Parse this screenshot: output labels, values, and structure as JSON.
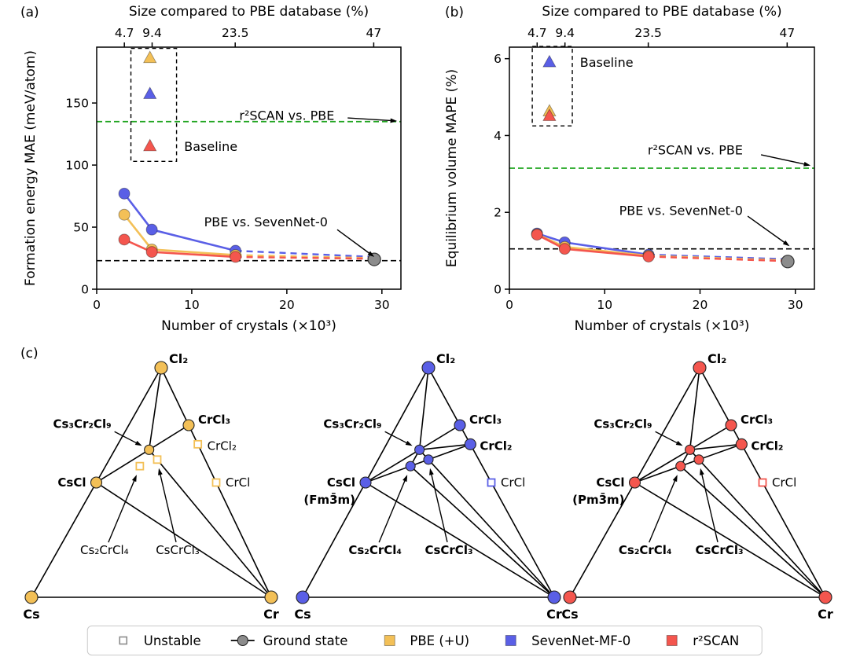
{
  "figure": {
    "panel_letters": {
      "a": "(a)",
      "b": "(b)",
      "c": "(c)"
    }
  },
  "colors": {
    "pbe_u": "#F3C057",
    "sevennet": "#5A5FE6",
    "r2scan": "#F4564E",
    "baseline_green": "#1FA51F",
    "ground_gray": "#8C8C8C",
    "unstable_gray": "#8C8C8C",
    "legend_border": "#C9C9C9"
  },
  "chart_data": [
    {
      "id": "a",
      "type": "line",
      "top_axis_title": "Size compared to PBE database (%)",
      "xlabel": "Number of crystals (×10³)",
      "ylabel": "Formation energy MAE (meV/atom)",
      "xlim": [
        0,
        32
      ],
      "ylim": [
        0,
        195
      ],
      "xticks": [
        0,
        10,
        20,
        30
      ],
      "yticks": [
        0,
        50,
        100,
        150
      ],
      "top_ticks": [
        {
          "x": 2.91,
          "label": "4.7"
        },
        {
          "x": 5.83,
          "label": "9.4"
        },
        {
          "x": 14.57,
          "label": "23.5"
        },
        {
          "x": 29.14,
          "label": "47"
        }
      ],
      "baselines": [
        {
          "y": 135,
          "color": "green"
        },
        {
          "y": 23,
          "color": "black"
        }
      ],
      "series": [
        {
          "name": "SevenNet-MF-0",
          "color_key": "sevennet",
          "solid": [
            [
              2.9,
              77
            ],
            [
              5.8,
              48
            ],
            [
              14.6,
              31
            ]
          ],
          "dashed_to": [
            29.2,
            26
          ]
        },
        {
          "name": "PBE (+U)",
          "color_key": "pbe_u",
          "solid": [
            [
              2.9,
              60
            ],
            [
              5.8,
              32
            ],
            [
              14.6,
              27.5
            ]
          ],
          "dashed_to": [
            29.2,
            25
          ]
        },
        {
          "name": "r²SCAN",
          "color_key": "r2scan",
          "solid": [
            [
              2.9,
              40
            ],
            [
              5.8,
              30
            ],
            [
              14.6,
              26
            ]
          ],
          "dashed_to": [
            29.2,
            24.5
          ]
        }
      ],
      "ground_state_point": [
        29.2,
        24
      ],
      "baseline_markers": [
        {
          "color_key": "pbe_u",
          "x": 5.6,
          "y": 186
        },
        {
          "color_key": "sevennet",
          "x": 5.6,
          "y": 157
        },
        {
          "color_key": "r2scan",
          "x": 5.6,
          "y": 115
        }
      ],
      "baseline_box": [
        3.6,
        103,
        8.4,
        194
      ],
      "baseline_label": {
        "text": "Baseline",
        "x": 9.2,
        "y": 115
      },
      "annotations": [
        {
          "text": "r²SCAN vs. PBE",
          "x": 20,
          "y": 140,
          "arrow": [
            [
              26.4,
              138
            ],
            [
              31.6,
              135.5
            ]
          ]
        },
        {
          "text": "PBE vs. SevenNet-0",
          "x": 17.8,
          "y": 54,
          "arrow": [
            [
              25.3,
              48
            ],
            [
              29.2,
              26
            ]
          ]
        }
      ]
    },
    {
      "id": "b",
      "type": "line",
      "top_axis_title": "Size compared to PBE database (%)",
      "xlabel": "Number of crystals (×10³)",
      "ylabel": "Equilibrium volume MAPE (%)",
      "xlim": [
        0,
        32
      ],
      "ylim": [
        0,
        6.3
      ],
      "xticks": [
        0,
        10,
        20,
        30
      ],
      "yticks": [
        0,
        2,
        4,
        6
      ],
      "top_ticks": [
        {
          "x": 2.91,
          "label": "4.7"
        },
        {
          "x": 5.83,
          "label": "9.4"
        },
        {
          "x": 14.57,
          "label": "23.5"
        },
        {
          "x": 29.14,
          "label": "47"
        }
      ],
      "baselines": [
        {
          "y": 3.15,
          "color": "green"
        },
        {
          "y": 1.05,
          "color": "black"
        }
      ],
      "series": [
        {
          "name": "SevenNet-MF-0",
          "color_key": "sevennet",
          "solid": [
            [
              2.9,
              1.45
            ],
            [
              5.8,
              1.22
            ],
            [
              14.6,
              0.9
            ]
          ],
          "dashed_to": [
            29.2,
            0.78
          ]
        },
        {
          "name": "PBE (+U)",
          "color_key": "pbe_u",
          "solid": [
            [
              2.9,
              1.43
            ],
            [
              5.8,
              1.1
            ],
            [
              14.6,
              0.87
            ]
          ],
          "dashed_to": [
            29.2,
            0.75
          ]
        },
        {
          "name": "r²SCAN",
          "color_key": "r2scan",
          "solid": [
            [
              2.9,
              1.42
            ],
            [
              5.8,
              1.05
            ],
            [
              14.6,
              0.85
            ]
          ],
          "dashed_to": [
            29.2,
            0.73
          ]
        }
      ],
      "ground_state_point": [
        29.2,
        0.72
      ],
      "baseline_markers": [
        {
          "color_key": "sevennet",
          "x": 4.2,
          "y": 5.9
        },
        {
          "color_key": "pbe_u",
          "x": 4.2,
          "y": 4.62
        },
        {
          "color_key": "r2scan",
          "x": 4.2,
          "y": 4.5
        }
      ],
      "baseline_box": [
        2.4,
        4.25,
        6.6,
        6.32
      ],
      "baseline_label": {
        "text": "Baseline",
        "x": 7.4,
        "y": 5.9
      },
      "annotations": [
        {
          "text": "r²SCAN vs. PBE",
          "x": 19.5,
          "y": 3.62,
          "arrow": [
            [
              26.4,
              3.5
            ],
            [
              31.6,
              3.22
            ]
          ]
        },
        {
          "text": "PBE vs. SevenNet-0",
          "x": 18,
          "y": 2.05,
          "arrow": [
            [
              25,
              1.9
            ],
            [
              29.4,
              1.12
            ]
          ]
        }
      ]
    }
  ],
  "ternary": {
    "compounds": {
      "Cl2": {
        "label": "Cl₂",
        "frac": [
          0,
          0,
          1
        ]
      },
      "Cs": {
        "label": "Cs",
        "frac": [
          1,
          0,
          0
        ]
      },
      "Cr": {
        "label": "Cr",
        "frac": [
          0,
          1,
          0
        ]
      },
      "CsCl": {
        "label": "CsCl",
        "frac": [
          0.5,
          0,
          0.5
        ]
      },
      "CrCl3": {
        "label": "CrCl₃",
        "frac": [
          0,
          0.25,
          0.75
        ]
      },
      "CrCl2": {
        "label": "CrCl₂",
        "frac": [
          0,
          0.3333,
          0.6667
        ]
      },
      "CrCl": {
        "label": "CrCl",
        "frac": [
          0,
          0.5,
          0.5
        ]
      },
      "Cs3Cr2Cl9": {
        "label": "Cs₃Cr₂Cl₉",
        "frac": [
          0.2143,
          0.1429,
          0.6429
        ]
      },
      "Cs2CrCl4": {
        "label": "Cs₂CrCl₄",
        "frac": [
          0.2857,
          0.1429,
          0.5714
        ]
      },
      "CsCrCl3": {
        "label": "CsCrCl₃",
        "frac": [
          0.2,
          0.2,
          0.6
        ]
      }
    },
    "diagrams": [
      {
        "name": "PBE (+U)",
        "color_key": "pbe_u",
        "cscl_sublabel": "",
        "stable": [
          "Cl2",
          "Cs",
          "Cr",
          "CsCl",
          "CrCl3",
          "Cs3Cr2Cl9"
        ],
        "unstable": [
          "CrCl2",
          "CrCl",
          "Cs2CrCl4",
          "CsCrCl3"
        ],
        "lines": [
          [
            "Cs",
            "Cl2"
          ],
          [
            "Cl2",
            "Cr"
          ],
          [
            "Cs",
            "Cr"
          ],
          [
            "CsCl",
            "Cs3Cr2Cl9"
          ],
          [
            "Cl2",
            "Cs3Cr2Cl9"
          ],
          [
            "CrCl3",
            "Cs3Cr2Cl9"
          ],
          [
            "Cs3Cr2Cl9",
            "Cr"
          ],
          [
            "CsCl",
            "Cr"
          ]
        ]
      },
      {
        "name": "SevenNet-MF-0",
        "color_key": "sevennet",
        "cscl_sublabel": "(Fm3̄m)",
        "stable": [
          "Cl2",
          "Cs",
          "Cr",
          "CsCl",
          "CrCl3",
          "CrCl2",
          "Cs3Cr2Cl9",
          "Cs2CrCl4",
          "CsCrCl3"
        ],
        "unstable": [
          "CrCl"
        ],
        "lines": [
          [
            "Cs",
            "Cl2"
          ],
          [
            "Cl2",
            "Cr"
          ],
          [
            "Cs",
            "Cr"
          ],
          [
            "CsCl",
            "Cs3Cr2Cl9"
          ],
          [
            "Cl2",
            "Cs3Cr2Cl9"
          ],
          [
            "CrCl3",
            "Cs3Cr2Cl9"
          ],
          [
            "CrCl2",
            "Cs3Cr2Cl9"
          ],
          [
            "Cs3Cr2Cl9",
            "Cs2CrCl4"
          ],
          [
            "Cs3Cr2Cl9",
            "CsCrCl3"
          ],
          [
            "Cs2CrCl4",
            "CsCrCl3"
          ],
          [
            "CsCrCl3",
            "CrCl2"
          ],
          [
            "CsCl",
            "Cs2CrCl4"
          ],
          [
            "Cs2CrCl4",
            "Cr"
          ],
          [
            "CsCrCl3",
            "Cr"
          ],
          [
            "CsCl",
            "Cr"
          ]
        ]
      },
      {
        "name": "r²SCAN",
        "color_key": "r2scan",
        "cscl_sublabel": "(Pm3̄m)",
        "stable": [
          "Cl2",
          "Cs",
          "Cr",
          "CsCl",
          "CrCl3",
          "CrCl2",
          "Cs3Cr2Cl9",
          "Cs2CrCl4",
          "CsCrCl3"
        ],
        "unstable": [
          "CrCl"
        ],
        "lines": [
          [
            "Cs",
            "Cl2"
          ],
          [
            "Cl2",
            "Cr"
          ],
          [
            "Cs",
            "Cr"
          ],
          [
            "CsCl",
            "Cs3Cr2Cl9"
          ],
          [
            "Cl2",
            "Cs3Cr2Cl9"
          ],
          [
            "CrCl3",
            "Cs3Cr2Cl9"
          ],
          [
            "CrCl2",
            "Cs3Cr2Cl9"
          ],
          [
            "Cs3Cr2Cl9",
            "Cs2CrCl4"
          ],
          [
            "Cs3Cr2Cl9",
            "CsCrCl3"
          ],
          [
            "Cs2CrCl4",
            "CsCrCl3"
          ],
          [
            "CsCrCl3",
            "CrCl2"
          ],
          [
            "CsCl",
            "Cs2CrCl4"
          ],
          [
            "Cs2CrCl4",
            "Cr"
          ],
          [
            "CsCrCl3",
            "Cr"
          ],
          [
            "CsCl",
            "Cr"
          ]
        ]
      }
    ]
  },
  "legend": {
    "items": [
      {
        "marker": "open-square",
        "label": "Unstable"
      },
      {
        "marker": "line-circle",
        "label": "Ground state"
      },
      {
        "marker": "square",
        "color_key": "pbe_u",
        "label": "PBE (+U)"
      },
      {
        "marker": "square",
        "color_key": "sevennet",
        "label": "SevenNet-MF-0"
      },
      {
        "marker": "square",
        "color_key": "r2scan",
        "label": "r²SCAN"
      }
    ]
  }
}
